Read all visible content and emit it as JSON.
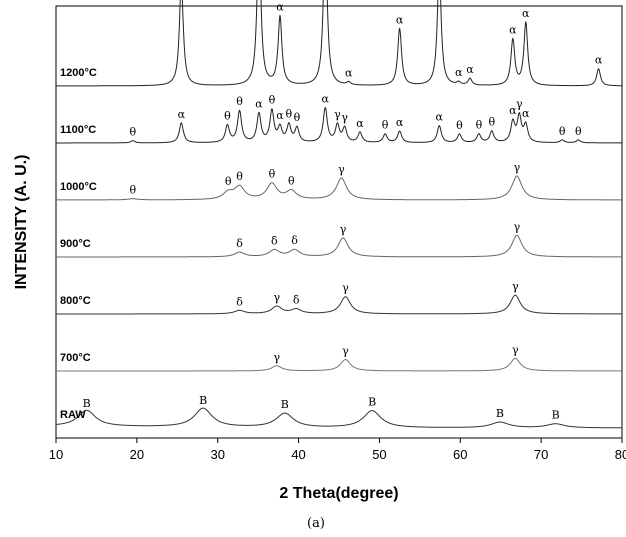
{
  "caption": "(a)",
  "chart_data": {
    "type": "line",
    "title": "",
    "xlabel": "2 Theta(degree)",
    "ylabel": "INTENSITY (A. U.)",
    "xlim": [
      10,
      80
    ],
    "xticks": [
      10,
      20,
      30,
      40,
      50,
      60,
      70,
      80
    ],
    "grid": false,
    "legend": "none",
    "y_scale": "arbitrary units, traces stacked vertically",
    "series": [
      {
        "name": "1200°C",
        "color": "#222222",
        "offset": 6.0,
        "peaks": [
          {
            "x": 25.5,
            "height": 1.85,
            "label": "α"
          },
          {
            "x": 35.1,
            "height": 2.7,
            "label": "α"
          },
          {
            "x": 37.7,
            "height": 1.2,
            "label": "α"
          },
          {
            "x": 43.3,
            "height": 2.7,
            "label": "α"
          },
          {
            "x": 46.2,
            "height": 0.05,
            "label": "α"
          },
          {
            "x": 52.5,
            "height": 1.0,
            "label": "α"
          },
          {
            "x": 57.4,
            "height": 2.05,
            "label": "α"
          },
          {
            "x": 59.8,
            "height": 0.05,
            "label": "α"
          },
          {
            "x": 61.2,
            "height": 0.12,
            "label": "α"
          },
          {
            "x": 66.5,
            "height": 0.8,
            "label": "α"
          },
          {
            "x": 68.1,
            "height": 1.1,
            "label": "α"
          },
          {
            "x": 77.1,
            "height": 0.3,
            "label": "α"
          }
        ]
      },
      {
        "name": "1100°C",
        "color": "#222222",
        "offset": 5.0,
        "peaks": [
          {
            "x": 19.5,
            "height": 0.04,
            "label": "θ"
          },
          {
            "x": 25.5,
            "height": 0.35,
            "label": "α"
          },
          {
            "x": 31.2,
            "height": 0.3,
            "label": "θ"
          },
          {
            "x": 32.7,
            "height": 0.55,
            "label": "θ"
          },
          {
            "x": 35.1,
            "height": 0.5,
            "label": "α"
          },
          {
            "x": 36.7,
            "height": 0.55,
            "label": "θ"
          },
          {
            "x": 37.7,
            "height": 0.25,
            "label": "α"
          },
          {
            "x": 38.8,
            "height": 0.3,
            "label": "θ"
          },
          {
            "x": 39.8,
            "height": 0.25,
            "label": "θ"
          },
          {
            "x": 43.3,
            "height": 0.6,
            "label": "α"
          },
          {
            "x": 44.8,
            "height": 0.3,
            "label": "γ"
          },
          {
            "x": 45.7,
            "height": 0.25,
            "label": "γ"
          },
          {
            "x": 47.6,
            "height": 0.18,
            "label": "α"
          },
          {
            "x": 50.7,
            "height": 0.15,
            "label": "θ"
          },
          {
            "x": 52.5,
            "height": 0.2,
            "label": "α"
          },
          {
            "x": 57.4,
            "height": 0.3,
            "label": "α"
          },
          {
            "x": 59.9,
            "height": 0.15,
            "label": "θ"
          },
          {
            "x": 62.3,
            "height": 0.15,
            "label": "θ"
          },
          {
            "x": 63.9,
            "height": 0.2,
            "label": "θ"
          },
          {
            "x": 66.5,
            "height": 0.35,
            "label": "α"
          },
          {
            "x": 67.3,
            "height": 0.45,
            "label": "γ"
          },
          {
            "x": 68.1,
            "height": 0.3,
            "label": "α"
          },
          {
            "x": 72.6,
            "height": 0.05,
            "label": "θ"
          },
          {
            "x": 74.6,
            "height": 0.05,
            "label": "θ"
          }
        ]
      },
      {
        "name": "1000°C",
        "color": "#666666",
        "offset": 4.0,
        "peaks": [
          {
            "x": 19.5,
            "height": 0.02,
            "label": "θ"
          },
          {
            "x": 31.3,
            "height": 0.12,
            "label": "θ"
          },
          {
            "x": 32.7,
            "height": 0.22,
            "label": "θ"
          },
          {
            "x": 36.7,
            "height": 0.28,
            "label": "θ"
          },
          {
            "x": 39.1,
            "height": 0.15,
            "label": "θ"
          },
          {
            "x": 45.3,
            "height": 0.38,
            "label": "γ"
          },
          {
            "x": 67.0,
            "height": 0.42,
            "label": "γ"
          }
        ]
      },
      {
        "name": "900°C",
        "color": "#666666",
        "offset": 3.0,
        "peaks": [
          {
            "x": 32.7,
            "height": 0.08,
            "label": "δ"
          },
          {
            "x": 37.0,
            "height": 0.12,
            "label": "δ"
          },
          {
            "x": 39.5,
            "height": 0.12,
            "label": "δ"
          },
          {
            "x": 45.5,
            "height": 0.33,
            "label": "γ"
          },
          {
            "x": 67.0,
            "height": 0.38,
            "label": "γ"
          }
        ]
      },
      {
        "name": "800°C",
        "color": "#333333",
        "offset": 2.0,
        "peaks": [
          {
            "x": 32.7,
            "height": 0.06,
            "label": "δ"
          },
          {
            "x": 37.3,
            "height": 0.13,
            "label": "γ"
          },
          {
            "x": 39.7,
            "height": 0.08,
            "label": "δ"
          },
          {
            "x": 45.8,
            "height": 0.3,
            "label": "γ"
          },
          {
            "x": 66.8,
            "height": 0.33,
            "label": "γ"
          }
        ]
      },
      {
        "name": "700°C",
        "color": "#777777",
        "offset": 1.0,
        "peaks": [
          {
            "x": 37.3,
            "height": 0.09,
            "label": "γ"
          },
          {
            "x": 45.8,
            "height": 0.2,
            "label": "γ"
          },
          {
            "x": 66.8,
            "height": 0.22,
            "label": "γ"
          }
        ]
      },
      {
        "name": "RAW",
        "color": "#333333",
        "offset": 0.0,
        "peaks": [
          {
            "x": 13.8,
            "height": 0.28,
            "label": "B"
          },
          {
            "x": 28.2,
            "height": 0.33,
            "label": "B"
          },
          {
            "x": 38.3,
            "height": 0.25,
            "label": "B"
          },
          {
            "x": 49.1,
            "height": 0.3,
            "label": "B"
          },
          {
            "x": 64.9,
            "height": 0.1,
            "label": "B"
          },
          {
            "x": 71.8,
            "height": 0.07,
            "label": "B"
          }
        ]
      }
    ]
  }
}
